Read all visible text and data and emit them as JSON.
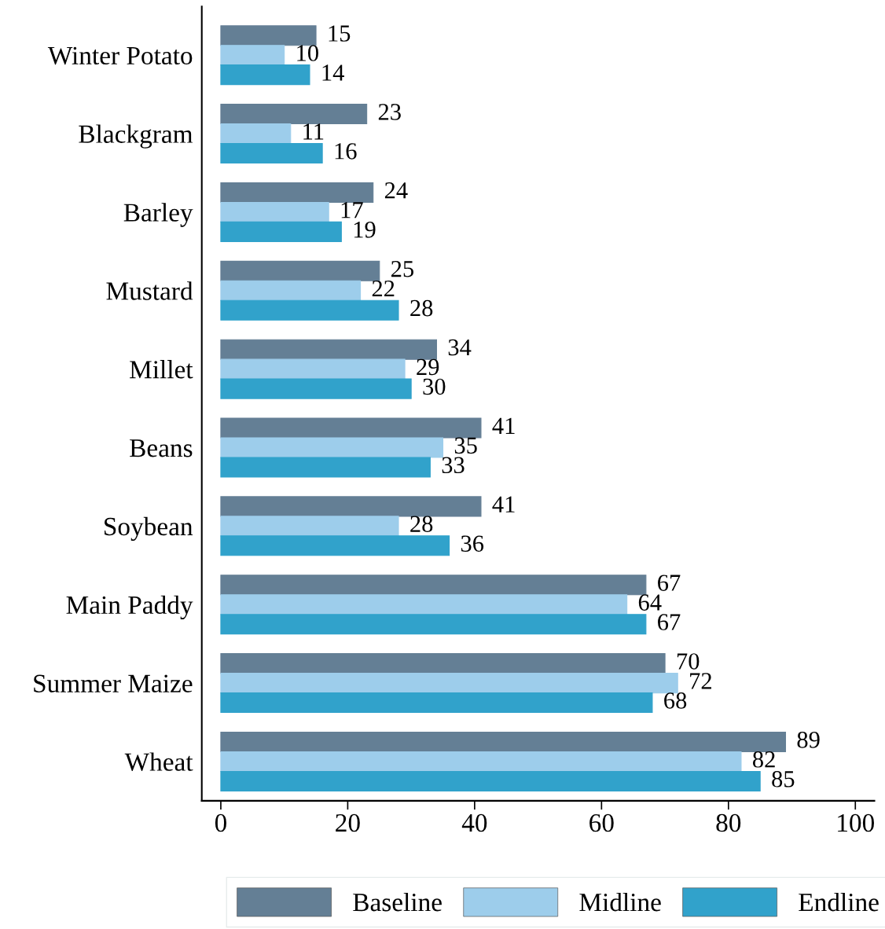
{
  "chart_data": {
    "type": "bar",
    "orientation": "horizontal",
    "categories": [
      "Winter Potato",
      "Blackgram",
      "Barley",
      "Mustard",
      "Millet",
      "Beans",
      "Soybean",
      "Main Paddy",
      "Summer Maize",
      "Wheat"
    ],
    "series": [
      {
        "name": "Baseline",
        "color": "#647f95",
        "values": [
          15,
          23,
          24,
          25,
          34,
          41,
          41,
          67,
          70,
          89
        ]
      },
      {
        "name": "Midline",
        "color": "#9dcdeb",
        "values": [
          10,
          11,
          17,
          22,
          29,
          35,
          28,
          64,
          72,
          82
        ]
      },
      {
        "name": "Endline",
        "color": "#31a2cb",
        "values": [
          14,
          16,
          19,
          28,
          30,
          33,
          36,
          67,
          68,
          85
        ]
      }
    ],
    "xlim": [
      -3,
      103
    ],
    "xticks": [
      0,
      20,
      40,
      60,
      80,
      100
    ],
    "data_labels": true,
    "grid": false,
    "legend": "bottom"
  }
}
